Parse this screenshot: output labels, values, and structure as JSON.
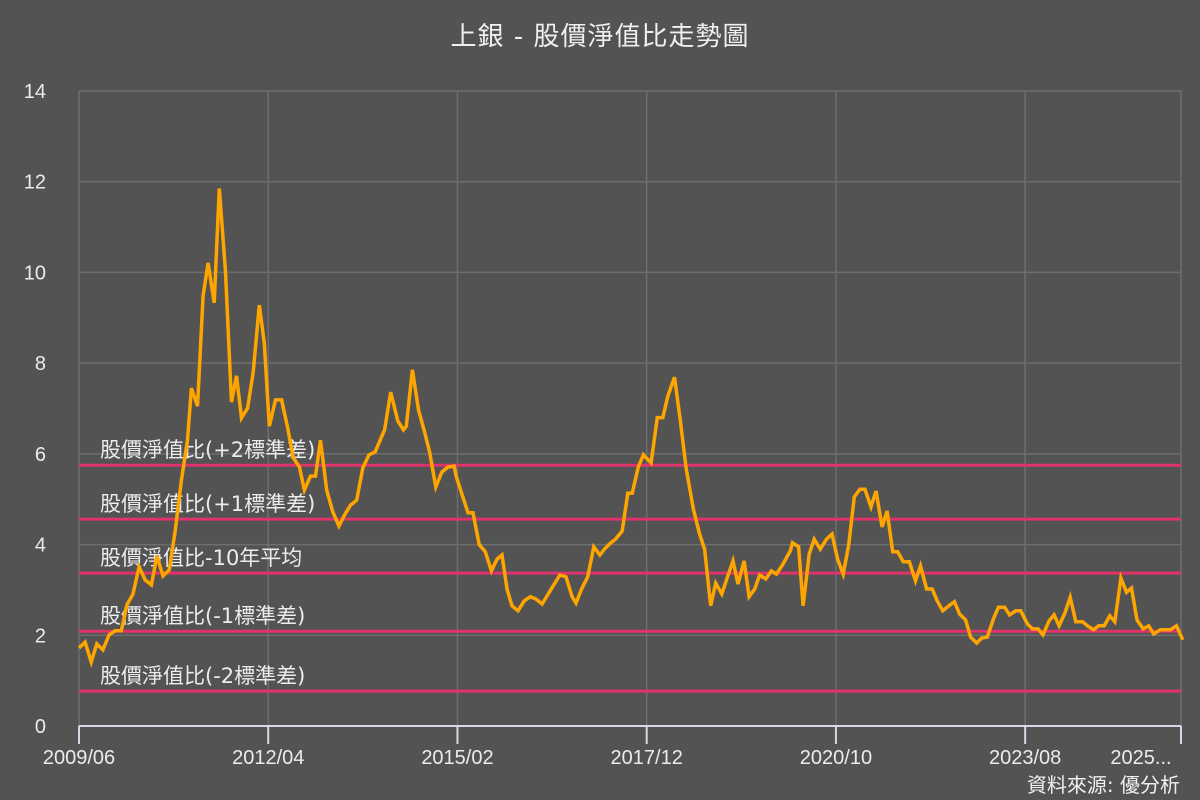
{
  "chart_data": {
    "type": "line",
    "title": "上銀 - 股價淨值比走勢圖",
    "xlabel": "",
    "ylabel": "",
    "ylim": [
      0,
      14
    ],
    "yticks": [
      0,
      2,
      4,
      6,
      8,
      10,
      12,
      14
    ],
    "x_tick_labels": [
      "2009/06",
      "2012/04",
      "2015/02",
      "2017/12",
      "2020/10",
      "2023/08",
      "2025..."
    ],
    "x_tick_month_index": [
      0,
      34,
      68,
      102,
      136,
      170,
      198
    ],
    "x_range_months": [
      0,
      198
    ],
    "grid": true,
    "source": "資料來源: 優分析",
    "colors": {
      "background": "#535353",
      "series": "#FFA500",
      "reference": "#E0336B",
      "grid": "#6e6e6e",
      "axis": "#d8d8e8",
      "text": "#ececec"
    },
    "series": [
      {
        "name": "股價淨值比",
        "month_index": [
          0,
          1.1,
          2.2,
          3.2,
          4.3,
          5.4,
          6.5,
          7.6,
          8.6,
          9.7,
          10.8,
          11.9,
          13,
          14,
          15.1,
          16.2,
          17.3,
          18.4,
          19.5,
          20.2,
          21.3,
          22.3,
          23.2,
          24.3,
          25.2,
          26.3,
          27.4,
          28.3,
          29.2,
          30.3,
          31.3,
          32.4,
          33.3,
          34.2,
          35.3,
          36.4,
          37.5,
          38.5,
          39.6,
          40.5,
          41.6,
          42.5,
          43.4,
          44.5,
          45.6,
          46.7,
          47.8,
          48.8,
          49.9,
          51,
          52.1,
          53.2,
          54.9,
          56,
          57.3,
          58.3,
          58.8,
          59.9,
          61,
          62.1,
          63,
          64.1,
          65.2,
          66.3,
          67.4,
          67.8,
          69.9,
          70.8,
          71.9,
          73,
          74.1,
          75.1,
          76,
          76.9,
          77.8,
          78.9,
          80,
          81.1,
          82.1,
          83.2,
          84.3,
          85.4,
          86.4,
          87.5,
          88.6,
          89.3,
          90.3,
          91.4,
          92.5,
          93.6,
          94.4,
          95.3,
          96.4,
          97.6,
          98.6,
          99.4,
          100.5,
          101.4,
          102.8,
          103.9,
          104.9,
          105.8,
          107,
          108,
          109.1,
          110.4,
          111.5,
          112.4,
          113.5,
          114.4,
          115.5,
          116.4,
          117.5,
          118.4,
          119.5,
          120.4,
          121.4,
          122.3,
          123.4,
          124.4,
          125.3,
          126.4,
          127.8,
          128.2,
          129.3,
          130.1,
          131.2,
          132.1,
          133.2,
          134.3,
          135.3,
          136.3,
          137.3,
          138.3,
          139.3,
          140.3,
          141.2,
          142.3,
          143.2,
          144.3,
          145.2,
          146.2,
          147.1,
          148.1,
          149.2,
          150.3,
          151.2,
          152.3,
          153.3,
          154.2,
          155.2,
          156.3,
          157.3,
          158.2,
          159.3,
          160.2,
          161.3,
          162.2,
          163.2,
          164.3,
          165.2,
          166.3,
          167.2,
          168.3,
          169.2,
          170.4,
          171.3,
          172.3,
          173.2,
          174.3,
          175.2,
          176.1,
          177.2,
          178.1,
          179.1,
          180.3,
          181.2,
          182.3,
          183.2,
          184.2,
          185.2,
          186.1,
          187.2,
          188.2,
          189.1,
          190.1,
          191.2,
          192.2,
          193.1,
          194.3,
          195.1,
          196.1,
          197.2,
          198.3
        ],
        "values": [
          1.72,
          1.85,
          1.41,
          1.81,
          1.68,
          2.01,
          2.1,
          2.1,
          2.67,
          2.91,
          3.51,
          3.22,
          3.11,
          3.75,
          3.31,
          3.44,
          4.32,
          5.42,
          6.3,
          7.45,
          7.05,
          9.49,
          10.21,
          9.33,
          11.85,
          10.05,
          7.14,
          7.72,
          6.79,
          7.01,
          7.8,
          9.28,
          8.44,
          6.61,
          7.19,
          7.19,
          6.57,
          5.91,
          5.71,
          5.2,
          5.51,
          5.51,
          6.3,
          5.2,
          4.72,
          4.41,
          4.67,
          4.87,
          4.98,
          5.69,
          5.98,
          6.04,
          6.53,
          7.36,
          6.72,
          6.53,
          6.61,
          7.85,
          6.97,
          6.48,
          6.04,
          5.27,
          5.6,
          5.71,
          5.73,
          5.49,
          4.7,
          4.7,
          4.0,
          3.84,
          3.42,
          3.68,
          3.77,
          3.02,
          2.65,
          2.54,
          2.76,
          2.85,
          2.8,
          2.69,
          2.91,
          3.13,
          3.33,
          3.29,
          2.85,
          2.71,
          3.02,
          3.29,
          3.95,
          3.77,
          3.9,
          4.01,
          4.12,
          4.3,
          5.13,
          5.13,
          5.71,
          5.98,
          5.8,
          6.8,
          6.8,
          7.27,
          7.69,
          6.77,
          5.67,
          4.78,
          4.23,
          3.9,
          2.65,
          3.15,
          2.91,
          3.24,
          3.64,
          3.13,
          3.64,
          2.85,
          3.02,
          3.33,
          3.24,
          3.42,
          3.35,
          3.55,
          3.86,
          4.04,
          3.95,
          2.65,
          3.79,
          4.12,
          3.9,
          4.12,
          4.23,
          3.68,
          3.35,
          3.99,
          5.05,
          5.22,
          5.22,
          4.83,
          5.18,
          4.39,
          4.74,
          3.84,
          3.84,
          3.62,
          3.62,
          3.2,
          3.53,
          3.02,
          3.02,
          2.76,
          2.54,
          2.65,
          2.74,
          2.47,
          2.34,
          1.96,
          1.83,
          1.94,
          1.96,
          2.36,
          2.62,
          2.62,
          2.45,
          2.54,
          2.54,
          2.25,
          2.14,
          2.14,
          2.01,
          2.32,
          2.45,
          2.21,
          2.51,
          2.84,
          2.3,
          2.3,
          2.21,
          2.12,
          2.21,
          2.21,
          2.43,
          2.3,
          3.26,
          2.95,
          3.04,
          2.34,
          2.14,
          2.21,
          2.03,
          2.12,
          2.12,
          2.12,
          2.21,
          1.9,
          1.9
        ]
      }
    ],
    "reference_lines": [
      {
        "label": "股價淨值比(+2標準差)",
        "value": 5.75
      },
      {
        "label": "股價淨值比(+1標準差)",
        "value": 4.56
      },
      {
        "label": "股價淨值比-10年平均",
        "value": 3.37
      },
      {
        "label": "股價淨值比(-1標準差)",
        "value": 2.09
      },
      {
        "label": "股價淨值比(-2標準差)",
        "value": 0.77
      }
    ]
  }
}
